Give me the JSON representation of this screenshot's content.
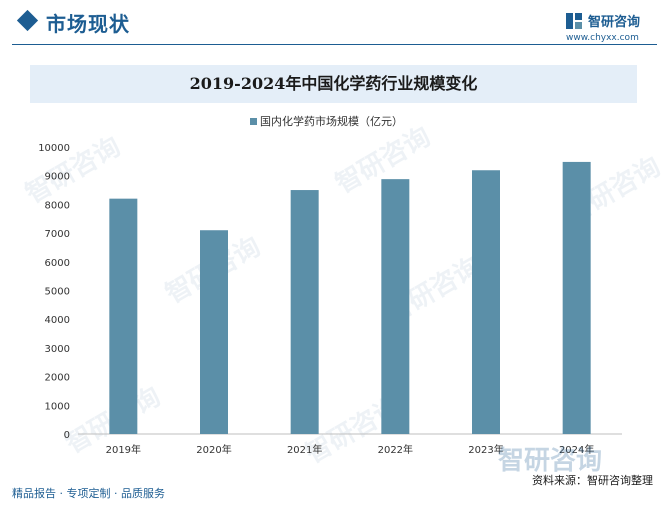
{
  "header": {
    "section_title": "市场现状",
    "brand_name": "智研咨询",
    "brand_url": "www.chyxx.com"
  },
  "footer": {
    "left_text": "精品报告 · 专项定制 · 品质服务",
    "source_text": "资料来源：智研咨询整理",
    "brand_watermark": "智研咨询"
  },
  "watermark_text": "智研咨询",
  "colors": {
    "bar": "#5b8fa8",
    "accent": "#1d5d92",
    "title_band": "#e4eef8"
  },
  "chart_data": {
    "type": "bar",
    "title": "2019-2024年中国化学药行业规模变化",
    "categories": [
      "2019年",
      "2020年",
      "2021年",
      "2022年",
      "2023年",
      "2024年"
    ],
    "series": [
      {
        "name": "国内化学药市场规模（亿元）",
        "values": [
          8200,
          7100,
          8500,
          8880,
          9190,
          9480
        ]
      }
    ],
    "y_ticks": [
      0,
      1000,
      2000,
      3000,
      4000,
      5000,
      6000,
      7000,
      8000,
      9000,
      10000
    ],
    "ylim": [
      0,
      10000
    ],
    "legend_position": "top-center",
    "grid": false
  }
}
